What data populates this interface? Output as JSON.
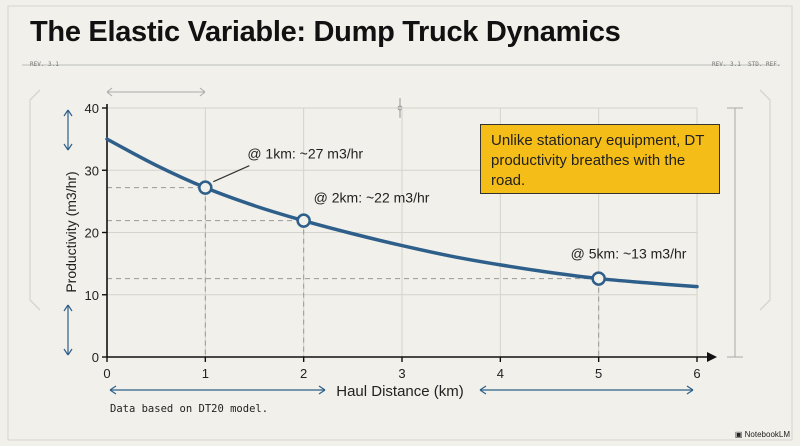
{
  "header": {
    "rev_left": "REV. 3.1",
    "rev_right": "REV. 3.1",
    "std_ref": "STD. REF."
  },
  "footer": {
    "brand": "NotebookLM"
  },
  "chart_data": {
    "type": "line",
    "title": "The Elastic Variable: Dump Truck Dynamics",
    "xlabel": "Haul Distance (km)",
    "ylabel": "Productivity (m3/hr)",
    "xlim": [
      0,
      6
    ],
    "ylim": [
      0,
      40
    ],
    "xticks": [
      0,
      1,
      2,
      3,
      4,
      5,
      6
    ],
    "yticks": [
      0,
      10,
      20,
      30,
      40
    ],
    "grid": true,
    "series": [
      {
        "color": "#2e5f8a",
        "x": [
          0,
          0.5,
          1,
          1.5,
          2,
          2.5,
          3,
          3.5,
          4,
          4.5,
          5,
          5.5,
          6
        ],
        "y": [
          35,
          30.8,
          27.2,
          24.3,
          21.9,
          19.8,
          17.9,
          16.2,
          14.8,
          13.6,
          12.6,
          11.9,
          11.3
        ]
      }
    ],
    "highlights": [
      {
        "x": 1,
        "y": 27.2,
        "label": "@ 1km: ~27 m3/hr"
      },
      {
        "x": 2,
        "y": 21.9,
        "label": "@ 2km: ~22 m3/hr"
      },
      {
        "x": 5,
        "y": 12.6,
        "label": "@ 5km: ~13 m3/hr"
      }
    ],
    "callout": "Unlike stationary equipment, DT productivity breathes with the road.",
    "callout_color": "#f5bd17",
    "footnote": "Data based on DT20 model."
  }
}
